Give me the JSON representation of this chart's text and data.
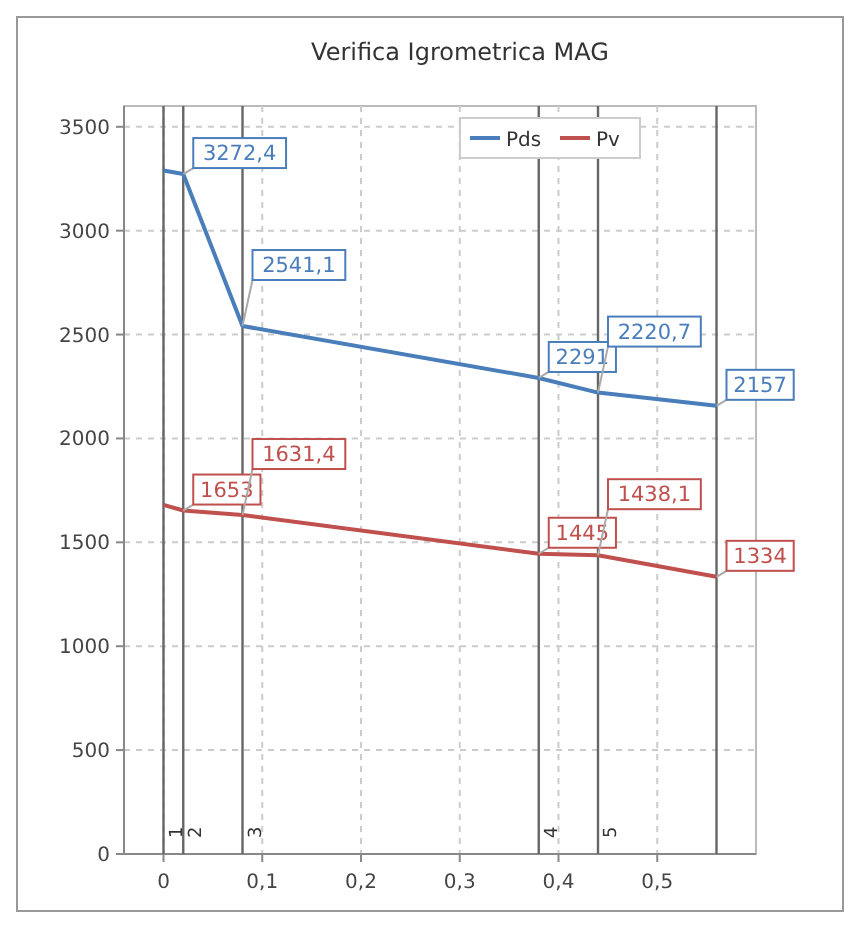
{
  "chart_data": {
    "type": "line",
    "title": "Verifica Igrometrica MAG",
    "x": [
      0,
      0.02,
      0.08,
      0.38,
      0.44,
      0.56
    ],
    "series": [
      {
        "name": "Pds",
        "color": "#4a7ebb",
        "values": [
          3290,
          3272.4,
          2541.1,
          2291,
          2220.7,
          2157
        ],
        "value_labels": [
          null,
          "3272,4",
          "2541,1",
          "2291",
          "2220,7",
          "2157"
        ]
      },
      {
        "name": "Pv",
        "color": "#c0504d",
        "values": [
          1680,
          1653,
          1631.4,
          1445,
          1438.1,
          1334
        ],
        "value_labels": [
          null,
          "1653",
          "1631,4",
          "1445",
          "1438,1",
          "1334"
        ]
      }
    ],
    "xlim": [
      -0.04,
      0.6
    ],
    "xticks": [
      0,
      {
        "value": 0.1,
        "label": "0,1"
      },
      {
        "value": 0.2,
        "label": "0,2"
      },
      {
        "value": 0.3,
        "label": "0,3"
      },
      {
        "value": 0.4,
        "label": "0,4"
      },
      {
        "value": 0.5,
        "label": "0,5"
      }
    ],
    "ylim": [
      0,
      3600
    ],
    "yticks": [
      0,
      500,
      1000,
      1500,
      2000,
      2500,
      3000,
      3500
    ],
    "ref_lines": [
      {
        "axis": "x",
        "value": 0
      },
      {
        "axis": "x",
        "value": 0.02
      },
      {
        "axis": "x",
        "value": 0.08
      },
      {
        "axis": "x",
        "value": 0.38
      },
      {
        "axis": "x",
        "value": 0.44
      },
      {
        "axis": "x",
        "value": 0.56
      }
    ],
    "annotations": [
      {
        "text": "1",
        "x": 0,
        "y": 0
      },
      {
        "text": "2",
        "x": 0.02,
        "y": 0
      },
      {
        "text": "3",
        "x": 0.08,
        "y": 0
      },
      {
        "text": "4",
        "x": 0.38,
        "y": 0
      },
      {
        "text": "5",
        "x": 0.44,
        "y": 0
      }
    ],
    "grid": true,
    "legend": "top",
    "marker": "none",
    "line_style": "solid"
  }
}
